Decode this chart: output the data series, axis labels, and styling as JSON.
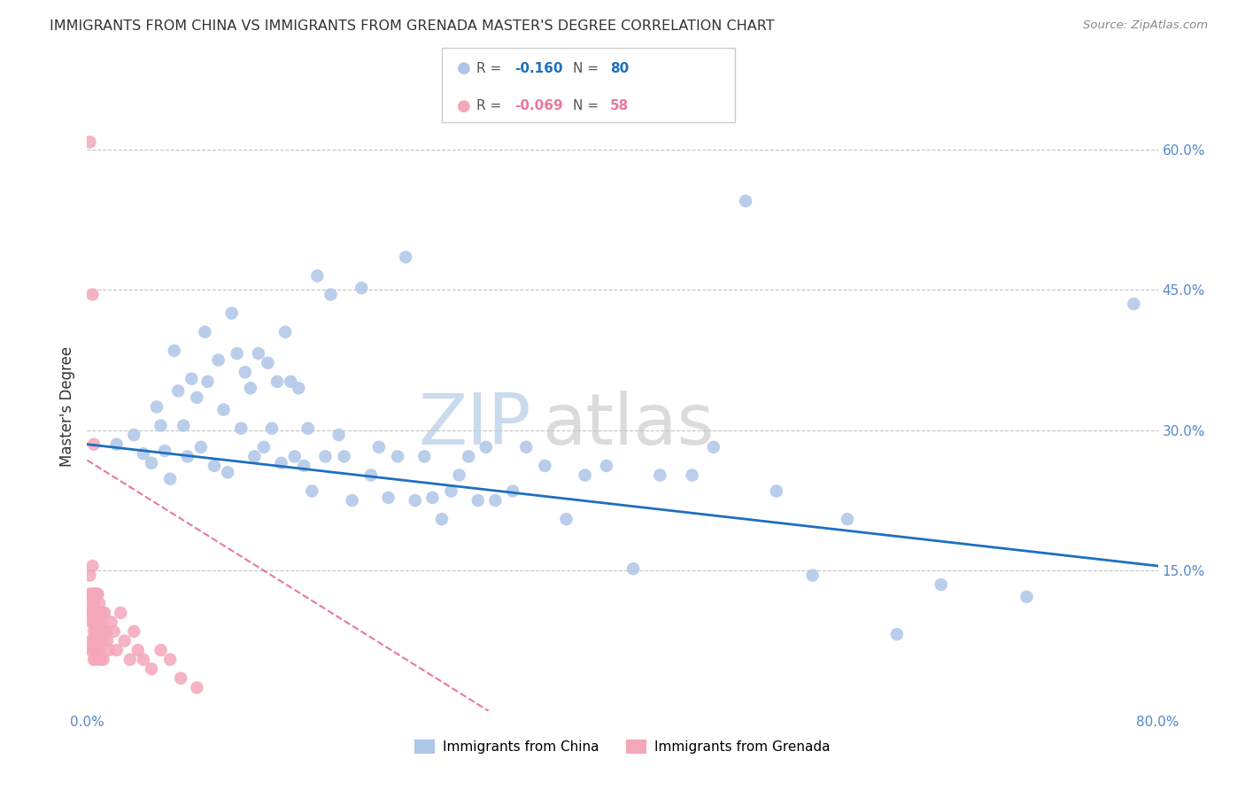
{
  "title": "IMMIGRANTS FROM CHINA VS IMMIGRANTS FROM GRENADA MASTER'S DEGREE CORRELATION CHART",
  "source": "Source: ZipAtlas.com",
  "ylabel": "Master's Degree",
  "xlim": [
    0.0,
    0.8
  ],
  "ylim": [
    0.0,
    0.65
  ],
  "yticks_right": [
    0.15,
    0.3,
    0.45,
    0.6
  ],
  "ytick_right_labels": [
    "15.0%",
    "30.0%",
    "45.0%",
    "60.0%"
  ],
  "china_R": -0.16,
  "china_N": 80,
  "grenada_R": -0.069,
  "grenada_N": 58,
  "china_color": "#aec6e8",
  "grenada_color": "#f4a7b9",
  "china_line_color": "#1f6fbf",
  "grenada_line_color": "#e8799a",
  "china_label": "Immigrants from China",
  "grenada_label": "Immigrants from Grenada",
  "china_x": [
    0.022,
    0.035,
    0.042,
    0.048,
    0.052,
    0.055,
    0.058,
    0.062,
    0.065,
    0.068,
    0.072,
    0.075,
    0.078,
    0.082,
    0.085,
    0.088,
    0.09,
    0.095,
    0.098,
    0.102,
    0.105,
    0.108,
    0.112,
    0.115,
    0.118,
    0.122,
    0.125,
    0.128,
    0.132,
    0.135,
    0.138,
    0.142,
    0.145,
    0.148,
    0.152,
    0.155,
    0.158,
    0.162,
    0.165,
    0.168,
    0.172,
    0.178,
    0.182,
    0.188,
    0.192,
    0.198,
    0.205,
    0.212,
    0.218,
    0.225,
    0.232,
    0.238,
    0.245,
    0.252,
    0.258,
    0.265,
    0.272,
    0.278,
    0.285,
    0.292,
    0.298,
    0.305,
    0.318,
    0.328,
    0.342,
    0.358,
    0.372,
    0.388,
    0.408,
    0.428,
    0.452,
    0.468,
    0.492,
    0.515,
    0.542,
    0.568,
    0.605,
    0.638,
    0.702,
    0.782
  ],
  "china_y": [
    0.285,
    0.295,
    0.275,
    0.265,
    0.325,
    0.305,
    0.278,
    0.248,
    0.385,
    0.342,
    0.305,
    0.272,
    0.355,
    0.335,
    0.282,
    0.405,
    0.352,
    0.262,
    0.375,
    0.322,
    0.255,
    0.425,
    0.382,
    0.302,
    0.362,
    0.345,
    0.272,
    0.382,
    0.282,
    0.372,
    0.302,
    0.352,
    0.265,
    0.405,
    0.352,
    0.272,
    0.345,
    0.262,
    0.302,
    0.235,
    0.465,
    0.272,
    0.445,
    0.295,
    0.272,
    0.225,
    0.452,
    0.252,
    0.282,
    0.228,
    0.272,
    0.485,
    0.225,
    0.272,
    0.228,
    0.205,
    0.235,
    0.252,
    0.272,
    0.225,
    0.282,
    0.225,
    0.235,
    0.282,
    0.262,
    0.205,
    0.252,
    0.262,
    0.152,
    0.252,
    0.252,
    0.282,
    0.545,
    0.235,
    0.145,
    0.205,
    0.082,
    0.135,
    0.122,
    0.435
  ],
  "grenada_x": [
    0.002,
    0.002,
    0.002,
    0.003,
    0.003,
    0.003,
    0.003,
    0.003,
    0.004,
    0.004,
    0.004,
    0.004,
    0.005,
    0.005,
    0.005,
    0.005,
    0.005,
    0.005,
    0.005,
    0.005,
    0.006,
    0.006,
    0.006,
    0.006,
    0.007,
    0.007,
    0.007,
    0.007,
    0.008,
    0.008,
    0.008,
    0.009,
    0.009,
    0.01,
    0.01,
    0.01,
    0.011,
    0.011,
    0.012,
    0.012,
    0.013,
    0.014,
    0.015,
    0.016,
    0.018,
    0.02,
    0.022,
    0.025,
    0.028,
    0.032,
    0.035,
    0.038,
    0.042,
    0.048,
    0.055,
    0.062,
    0.07,
    0.082
  ],
  "grenada_y": [
    0.608,
    0.145,
    0.125,
    0.115,
    0.105,
    0.095,
    0.075,
    0.065,
    0.445,
    0.155,
    0.125,
    0.105,
    0.285,
    0.125,
    0.115,
    0.095,
    0.085,
    0.075,
    0.065,
    0.055,
    0.125,
    0.095,
    0.075,
    0.055,
    0.125,
    0.105,
    0.085,
    0.065,
    0.125,
    0.095,
    0.065,
    0.115,
    0.075,
    0.095,
    0.075,
    0.055,
    0.105,
    0.075,
    0.085,
    0.055,
    0.105,
    0.085,
    0.075,
    0.065,
    0.095,
    0.085,
    0.065,
    0.105,
    0.075,
    0.055,
    0.085,
    0.065,
    0.055,
    0.045,
    0.065,
    0.055,
    0.035,
    0.025
  ]
}
